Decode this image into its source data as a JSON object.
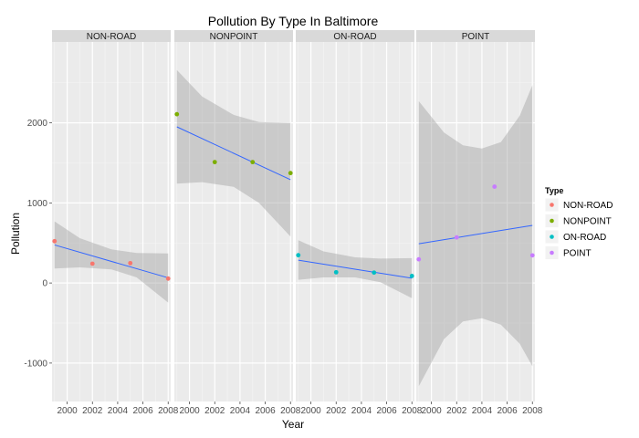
{
  "chart_data": {
    "type": "scatter",
    "title": "Pollution By Type In Baltimore",
    "xlabel": "Year",
    "ylabel": "Pollution",
    "xlim": [
      1998.8,
      2008.2
    ],
    "ylim": [
      -1480,
      3010
    ],
    "x_ticks": [
      2000,
      2002,
      2004,
      2006,
      2008
    ],
    "x_tick_labels": [
      "2000",
      "2002",
      "2004",
      "2006",
      "2008"
    ],
    "y_ticks": [
      -1000,
      0,
      1000,
      2000
    ],
    "y_tick_labels": [
      "-1000",
      "0",
      "1000",
      "2000"
    ],
    "grid": true,
    "legend": {
      "title": "Type",
      "position": "right",
      "entries": [
        "NON-ROAD",
        "NONPOINT",
        "ON-ROAD",
        "POINT"
      ]
    },
    "panels": [
      {
        "name": "NON-ROAD",
        "color": "#F8766D",
        "points": [
          [
            1999,
            522
          ],
          [
            2002,
            241
          ],
          [
            2005,
            248
          ],
          [
            2008,
            55
          ]
        ],
        "fit": [
          [
            1999,
            475
          ],
          [
            2008,
            65
          ]
        ],
        "band_upper": [
          [
            1999,
            770
          ],
          [
            2001,
            560
          ],
          [
            2003.5,
            420
          ],
          [
            2005.5,
            375
          ],
          [
            2008,
            370
          ]
        ],
        "band_lower": [
          [
            1999,
            180
          ],
          [
            2001,
            195
          ],
          [
            2003.5,
            170
          ],
          [
            2005.5,
            70
          ],
          [
            2008,
            -245
          ]
        ]
      },
      {
        "name": "NONPOINT",
        "color": "#7CAE00",
        "points": [
          [
            1999,
            2108
          ],
          [
            2002,
            1510
          ],
          [
            2005,
            1510
          ],
          [
            2008,
            1373
          ]
        ],
        "fit": [
          [
            1999,
            1950
          ],
          [
            2008,
            1290
          ]
        ],
        "band_upper": [
          [
            1999,
            2660
          ],
          [
            2001,
            2330
          ],
          [
            2003.5,
            2100
          ],
          [
            2005.5,
            2010
          ],
          [
            2008,
            2000
          ]
        ],
        "band_lower": [
          [
            1999,
            1240
          ],
          [
            2001,
            1260
          ],
          [
            2003.5,
            1200
          ],
          [
            2005.5,
            1000
          ],
          [
            2008,
            580
          ]
        ]
      },
      {
        "name": "ON-ROAD",
        "color": "#00BFC4",
        "points": [
          [
            1999,
            347
          ],
          [
            2002,
            134
          ],
          [
            2005,
            130
          ],
          [
            2008,
            88
          ]
        ],
        "fit": [
          [
            1999,
            285
          ],
          [
            2008,
            60
          ]
        ],
        "band_upper": [
          [
            1999,
            535
          ],
          [
            2001,
            395
          ],
          [
            2003.5,
            320
          ],
          [
            2005.5,
            305
          ],
          [
            2008,
            310
          ]
        ],
        "band_lower": [
          [
            1999,
            40
          ],
          [
            2001,
            70
          ],
          [
            2003.5,
            70
          ],
          [
            2005.5,
            10
          ],
          [
            2008,
            -190
          ]
        ]
      },
      {
        "name": "POINT",
        "color": "#C77CFF",
        "points": [
          [
            1999,
            296
          ],
          [
            2002,
            569
          ],
          [
            2005,
            1203
          ],
          [
            2008,
            345
          ]
        ],
        "fit": [
          [
            1999,
            490
          ],
          [
            2008,
            720
          ]
        ],
        "band_upper": [
          [
            1999,
            2270
          ],
          [
            2001,
            1880
          ],
          [
            2002.5,
            1720
          ],
          [
            2004,
            1680
          ],
          [
            2005.5,
            1760
          ],
          [
            2007,
            2090
          ],
          [
            2008,
            2470
          ]
        ],
        "band_lower": [
          [
            1999,
            -1290
          ],
          [
            2001,
            -700
          ],
          [
            2002.5,
            -480
          ],
          [
            2004,
            -440
          ],
          [
            2005.5,
            -520
          ],
          [
            2007,
            -760
          ],
          [
            2008,
            -1040
          ]
        ]
      }
    ]
  },
  "colors": {
    "panel_bg": "#EBEBEB",
    "strip_bg": "#D9D9D9",
    "grid_major": "#FFFFFF",
    "grid_minor": "#F5F5F5",
    "fit_line": "#3366FF",
    "band": "#999999"
  }
}
